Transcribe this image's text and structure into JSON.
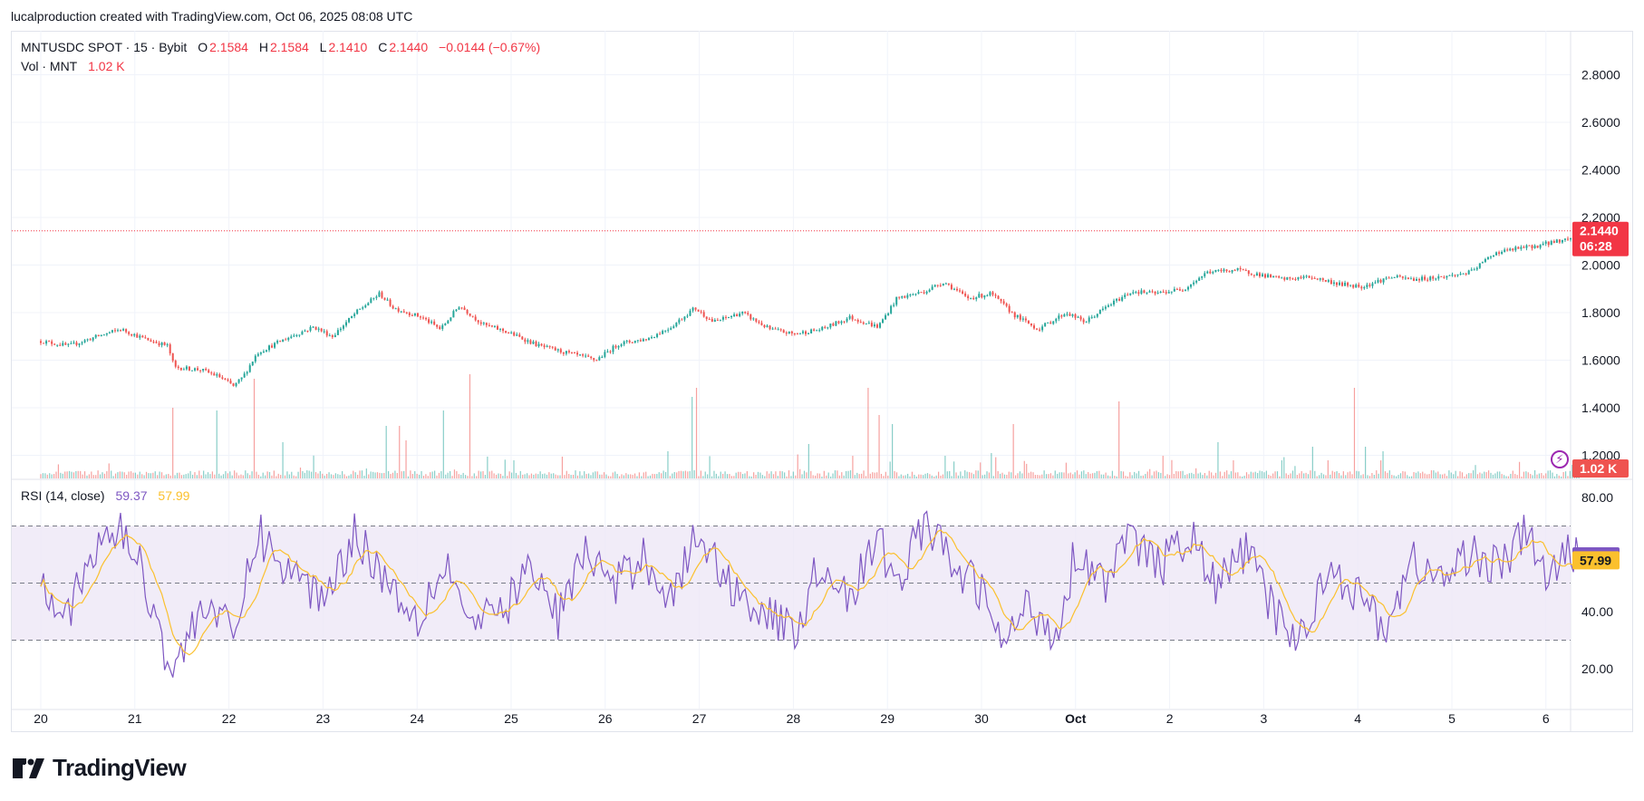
{
  "header": {
    "text": "lucalproduction created with TradingView.com, Oct 06, 2025 08:08 UTC"
  },
  "legend": {
    "symbol": "MNTUSDC SPOT · 15 · Bybit",
    "o_label": "O",
    "o_value": "2.1584",
    "h_label": "H",
    "h_value": "2.1584",
    "l_label": "L",
    "l_value": "2.1410",
    "c_label": "C",
    "c_value": "2.1440",
    "change": "−0.0144 (−0.67%)",
    "vol_label": "Vol · MNT",
    "vol_value": "1.02 K",
    "rsi_label": "RSI (14, close)",
    "rsi_value": "59.37",
    "rsi_ma_value": "57.99"
  },
  "badges": {
    "price": "2.1440",
    "countdown": "06:28",
    "volume": "1.02 K",
    "rsi": "59.37",
    "rsi_ma": "57.99"
  },
  "colors": {
    "up": "#26a69a",
    "down": "#ef5350",
    "rsi": "#7e57c2",
    "rsi_ma": "#fbc02d",
    "band": "#ede7f6",
    "price_badge": "#f23645"
  },
  "logo": {
    "text": "TradingView"
  },
  "icons": {
    "flash": "lightning-icon",
    "logo": "tradingview-logo-icon"
  },
  "chart_data": [
    {
      "type": "candlestick",
      "title": "MNTUSDC SPOT · 15 · Bybit",
      "x_tick_labels": [
        "20",
        "21",
        "22",
        "23",
        "24",
        "25",
        "26",
        "27",
        "28",
        "29",
        "30",
        "Oct",
        "2",
        "3",
        "4",
        "5",
        "6"
      ],
      "y_tick_labels": [
        "2.8000",
        "2.6000",
        "2.4000",
        "2.2000",
        "2.0000",
        "1.8000",
        "1.6000",
        "1.4000",
        "1.2000"
      ],
      "ylim": [
        1.1,
        2.9
      ],
      "last_price": 2.144,
      "close_path": [
        [
          0,
          1.68
        ],
        [
          0.3,
          1.66
        ],
        [
          0.6,
          1.7
        ],
        [
          0.85,
          1.73
        ],
        [
          1.1,
          1.69
        ],
        [
          1.35,
          1.66
        ],
        [
          1.42,
          1.57
        ],
        [
          1.7,
          1.56
        ],
        [
          1.9,
          1.53
        ],
        [
          2.05,
          1.49
        ],
        [
          2.15,
          1.53
        ],
        [
          2.3,
          1.63
        ],
        [
          2.6,
          1.69
        ],
        [
          2.9,
          1.74
        ],
        [
          3.1,
          1.7
        ],
        [
          3.35,
          1.8
        ],
        [
          3.6,
          1.88
        ],
        [
          3.75,
          1.82
        ],
        [
          4.05,
          1.78
        ],
        [
          4.25,
          1.73
        ],
        [
          4.45,
          1.83
        ],
        [
          4.7,
          1.75
        ],
        [
          4.95,
          1.72
        ],
        [
          5.3,
          1.66
        ],
        [
          5.5,
          1.64
        ],
        [
          5.7,
          1.62
        ],
        [
          5.9,
          1.6
        ],
        [
          6.15,
          1.67
        ],
        [
          6.45,
          1.69
        ],
        [
          6.7,
          1.74
        ],
        [
          6.95,
          1.82
        ],
        [
          7.15,
          1.76
        ],
        [
          7.45,
          1.8
        ],
        [
          7.75,
          1.73
        ],
        [
          8.0,
          1.71
        ],
        [
          8.3,
          1.73
        ],
        [
          8.6,
          1.78
        ],
        [
          8.9,
          1.74
        ],
        [
          9.1,
          1.86
        ],
        [
          9.4,
          1.89
        ],
        [
          9.6,
          1.93
        ],
        [
          9.85,
          1.86
        ],
        [
          10.1,
          1.88
        ],
        [
          10.35,
          1.79
        ],
        [
          10.6,
          1.73
        ],
        [
          10.9,
          1.8
        ],
        [
          11.1,
          1.76
        ],
        [
          11.35,
          1.83
        ],
        [
          11.6,
          1.89
        ],
        [
          11.85,
          1.88
        ],
        [
          12.15,
          1.9
        ],
        [
          12.4,
          1.97
        ],
        [
          12.7,
          1.98
        ],
        [
          12.95,
          1.96
        ],
        [
          13.2,
          1.94
        ],
        [
          13.5,
          1.95
        ],
        [
          13.8,
          1.92
        ],
        [
          14.05,
          1.91
        ],
        [
          14.35,
          1.95
        ],
        [
          14.6,
          1.94
        ],
        [
          14.9,
          1.95
        ],
        [
          15.2,
          1.97
        ],
        [
          15.45,
          2.05
        ],
        [
          15.7,
          2.07
        ],
        [
          15.9,
          2.08
        ],
        [
          16.1,
          2.1
        ],
        [
          16.25,
          2.11
        ],
        [
          16.35,
          2.15
        ]
      ]
    },
    {
      "type": "bar",
      "title": "Vol · MNT",
      "last_value": "1.02 K"
    },
    {
      "type": "line",
      "title": "RSI (14, close)",
      "series": [
        {
          "name": "RSI",
          "last_value": 59.37
        },
        {
          "name": "RSI-based MA",
          "last_value": 57.99
        }
      ],
      "y_tick_labels": [
        "80.00",
        "40.00",
        "20.00"
      ],
      "ylim": [
        10,
        85
      ],
      "bands": [
        70,
        50,
        30
      ],
      "rsi_keypoints": [
        [
          0,
          52
        ],
        [
          0.3,
          40
        ],
        [
          0.6,
          62
        ],
        [
          0.85,
          70
        ],
        [
          1.1,
          52
        ],
        [
          1.4,
          18
        ],
        [
          1.75,
          45
        ],
        [
          2.05,
          30
        ],
        [
          2.3,
          68
        ],
        [
          2.6,
          55
        ],
        [
          3.0,
          45
        ],
        [
          3.35,
          68
        ],
        [
          3.65,
          52
        ],
        [
          4.0,
          38
        ],
        [
          4.3,
          58
        ],
        [
          4.6,
          34
        ],
        [
          4.9,
          40
        ],
        [
          5.2,
          55
        ],
        [
          5.5,
          38
        ],
        [
          5.8,
          62
        ],
        [
          6.1,
          48
        ],
        [
          6.4,
          60
        ],
        [
          6.7,
          45
        ],
        [
          7.0,
          68
        ],
        [
          7.3,
          50
        ],
        [
          7.7,
          40
        ],
        [
          8.0,
          32
        ],
        [
          8.3,
          58
        ],
        [
          8.6,
          45
        ],
        [
          8.9,
          65
        ],
        [
          9.1,
          50
        ],
        [
          9.4,
          72
        ],
        [
          9.7,
          55
        ],
        [
          10.0,
          48
        ],
        [
          10.2,
          28
        ],
        [
          10.5,
          42
        ],
        [
          10.8,
          32
        ],
        [
          11.0,
          62
        ],
        [
          11.3,
          50
        ],
        [
          11.6,
          66
        ],
        [
          11.9,
          55
        ],
        [
          12.2,
          68
        ],
        [
          12.5,
          48
        ],
        [
          12.8,
          62
        ],
        [
          13.1,
          40
        ],
        [
          13.4,
          30
        ],
        [
          13.7,
          58
        ],
        [
          14.0,
          45
        ],
        [
          14.3,
          35
        ],
        [
          14.6,
          58
        ],
        [
          14.9,
          50
        ],
        [
          15.2,
          62
        ],
        [
          15.5,
          55
        ],
        [
          15.8,
          68
        ],
        [
          16.05,
          50
        ],
        [
          16.25,
          62
        ],
        [
          16.35,
          59.37
        ]
      ]
    }
  ]
}
